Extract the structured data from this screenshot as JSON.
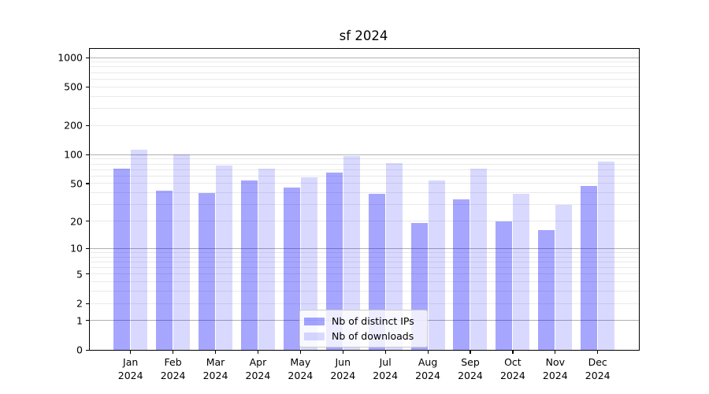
{
  "chart_data": {
    "type": "bar",
    "title": "sf 2024",
    "categories": [
      "Jan",
      "Feb",
      "Mar",
      "Apr",
      "May",
      "Jun",
      "Jul",
      "Aug",
      "Sep",
      "Oct",
      "Nov",
      "Dec"
    ],
    "category_year": "2024",
    "series": [
      {
        "name": "Nb of distinct IPs",
        "color": "rgba(0,0,255,0.35)",
        "values": [
          72,
          42,
          40,
          54,
          45,
          65,
          39,
          19,
          34,
          20,
          16,
          47
        ]
      },
      {
        "name": "Nb of downloads",
        "color": "rgba(0,0,255,0.15)",
        "values": [
          113,
          100,
          77,
          71,
          58,
          96,
          82,
          54,
          71,
          39,
          30,
          85
        ]
      }
    ],
    "yscale": "log1p",
    "ylim": [
      0,
      1230
    ],
    "yticks": [
      0,
      1,
      2,
      5,
      10,
      20,
      50,
      100,
      200,
      500,
      1000
    ],
    "major_gridlines": [
      1,
      10,
      100,
      1000
    ],
    "minor_gridlines": [
      2,
      3,
      4,
      5,
      6,
      7,
      8,
      9,
      20,
      30,
      40,
      50,
      60,
      70,
      80,
      90,
      200,
      300,
      400,
      500,
      600,
      700,
      800,
      900
    ],
    "grid": true,
    "legend_position": "lower center",
    "xlabel": "",
    "ylabel": ""
  },
  "colors": {
    "major_grid": "#b0b0b0",
    "minor_grid": "#eaeaea",
    "spine": "#000000",
    "legend_border": "#cccccc",
    "background": "#ffffff"
  }
}
